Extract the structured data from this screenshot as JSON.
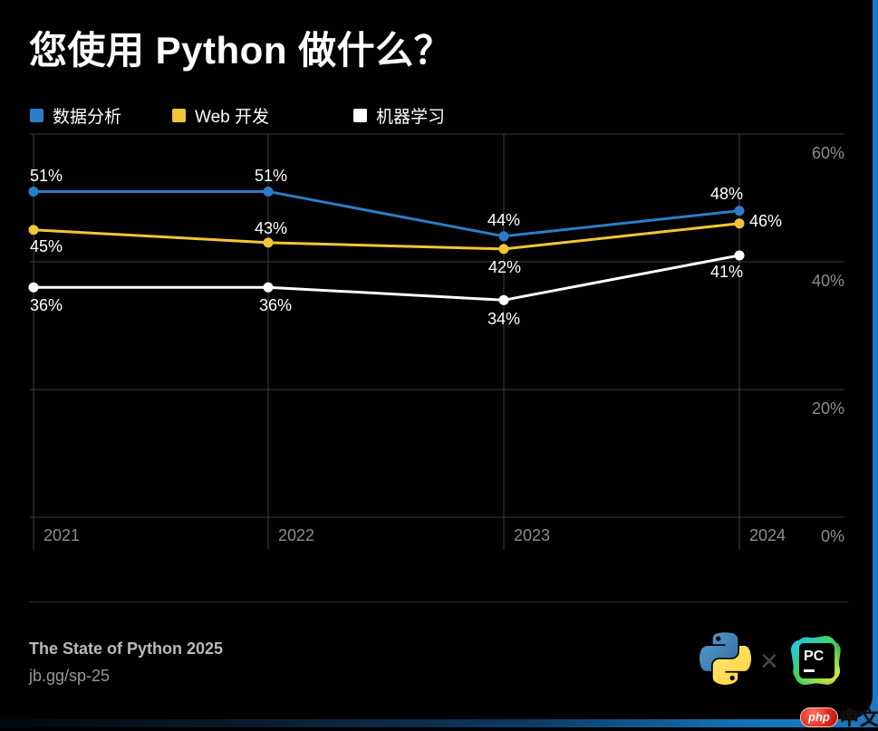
{
  "page": {
    "edge_color": "#1b7ac6",
    "background": "#000000"
  },
  "chart_data": {
    "type": "line",
    "title": "您使用 Python 做什么？",
    "categories": [
      "2021",
      "2022",
      "2023",
      "2024"
    ],
    "ylim": [
      0,
      60
    ],
    "yticks": [
      0,
      20,
      40,
      60
    ],
    "ytick_labels": [
      "0%",
      "20%",
      "40%",
      "60%"
    ],
    "grid": true,
    "legend_position": "top-left",
    "series": [
      {
        "name": "数据分析",
        "color": "#2b7dc7",
        "values": [
          51,
          51,
          44,
          48
        ],
        "point_labels": [
          {
            "text": "51%",
            "anchor": "start",
            "dx": -4,
            "dy": -26
          },
          {
            "text": "51%",
            "anchor": "middle",
            "dx": 3,
            "dy": -26
          },
          {
            "text": "44%",
            "anchor": "middle",
            "dx": 0,
            "dy": -27
          },
          {
            "text": "48%",
            "anchor": "middle",
            "dx": -14,
            "dy": -28
          }
        ]
      },
      {
        "name": "Web 开发",
        "color": "#f2c437",
        "values": [
          45,
          43,
          42,
          46
        ],
        "point_labels": [
          {
            "text": "45%",
            "anchor": "start",
            "dx": -4,
            "dy": 9
          },
          {
            "text": "43%",
            "anchor": "middle",
            "dx": 3,
            "dy": -25
          },
          {
            "text": "42%",
            "anchor": "middle",
            "dx": 1,
            "dy": 11
          },
          {
            "text": "46%",
            "anchor": "start",
            "dx": 11,
            "dy": -12
          }
        ]
      },
      {
        "name": "机器学习",
        "color": "#ffffff",
        "values": [
          36,
          36,
          34,
          41
        ],
        "point_labels": [
          {
            "text": "36%",
            "anchor": "start",
            "dx": -4,
            "dy": 11
          },
          {
            "text": "36%",
            "anchor": "middle",
            "dx": 8,
            "dy": 11
          },
          {
            "text": "34%",
            "anchor": "middle",
            "dx": 0,
            "dy": 12
          },
          {
            "text": "41%",
            "anchor": "middle",
            "dx": -14,
            "dy": 9
          }
        ]
      }
    ]
  },
  "footer": {
    "title": "The State of Python 2025",
    "url": "jb.gg/sp-25",
    "logo_separator": "×",
    "python_logo": "python-logo",
    "pycharm_logo": "pycharm-logo",
    "pycharm_text": "PC"
  },
  "watermark": {
    "badge": "php",
    "text": "中文网"
  }
}
